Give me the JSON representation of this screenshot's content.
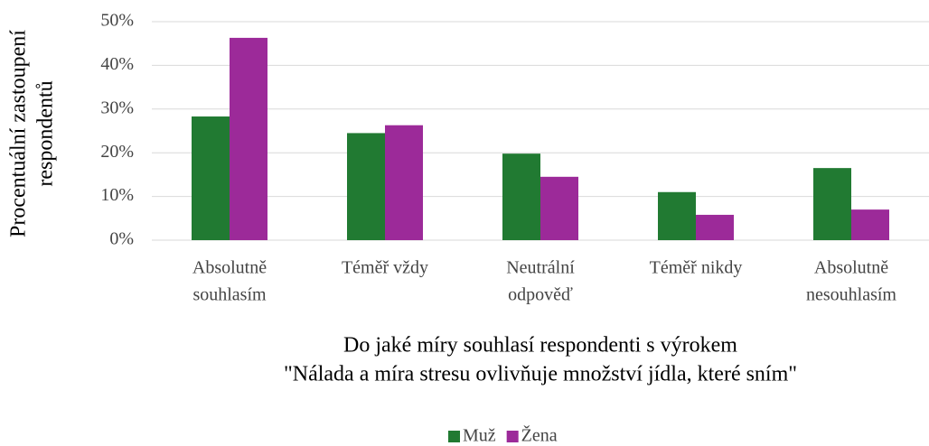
{
  "chart_data": {
    "type": "bar",
    "categories": [
      [
        "Absolutně",
        "souhlasím"
      ],
      [
        "Téměř vždy"
      ],
      [
        "Neutrální",
        "odpověď"
      ],
      [
        "Téměř nikdy"
      ],
      [
        "Absolutně",
        "nesouhlasím"
      ]
    ],
    "series": [
      {
        "name": "Muž",
        "color": "#217a32",
        "values": [
          28.3,
          24.5,
          19.8,
          11.0,
          16.5
        ]
      },
      {
        "name": "Žena",
        "color": "#9c2a99",
        "values": [
          46.3,
          26.3,
          14.5,
          5.8,
          7.0
        ]
      }
    ],
    "ylabel": [
      "Procentuální zastoupení",
      "respondentů"
    ],
    "xlabel": [
      "Do jaké míry souhlasí respondenti s výrokem",
      "\"Nálada a míra stresu ovlivňuje množství jídla, které sním\""
    ],
    "ylim": [
      0,
      50
    ],
    "yticks": [
      {
        "value": 0,
        "label": "0%"
      },
      {
        "value": 10,
        "label": "10%"
      },
      {
        "value": 20,
        "label": "20%"
      },
      {
        "value": 30,
        "label": "30%"
      },
      {
        "value": 40,
        "label": "40%"
      },
      {
        "value": 50,
        "label": "50%"
      }
    ],
    "grid": true,
    "legend": "bottom"
  }
}
